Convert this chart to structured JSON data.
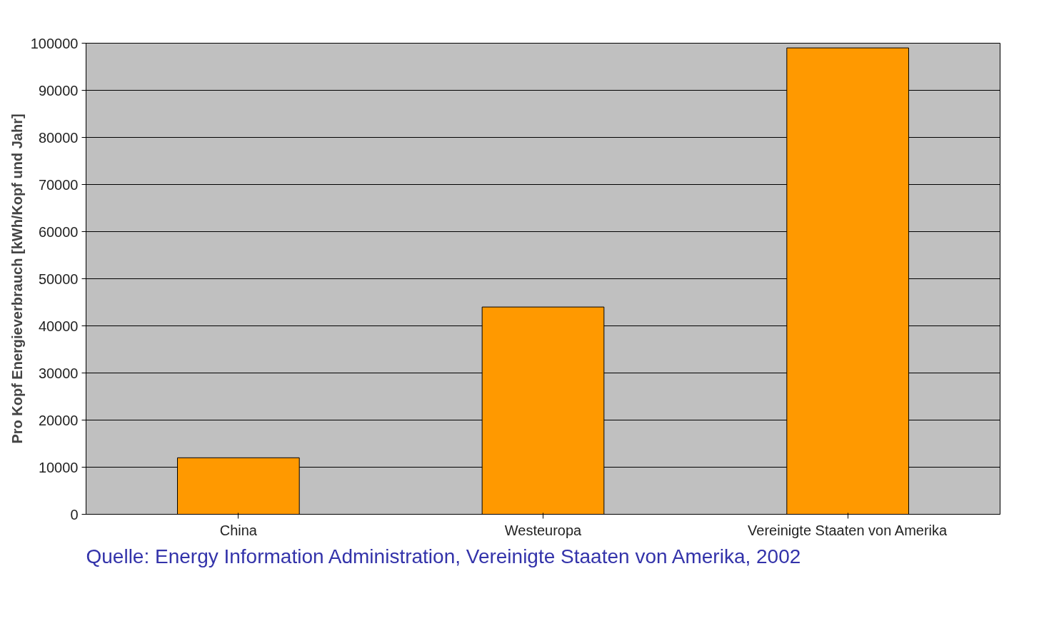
{
  "chart_data": {
    "type": "bar",
    "ylabel": "Pro Kopf Energieverbrauch [kWh/Kopf und Jahr]",
    "categories": [
      "China",
      "Westeuropa",
      "Vereinigte Staaten von Amerika"
    ],
    "values": [
      12000,
      44000,
      99000
    ],
    "color": "#ff9900",
    "ylim": [
      0,
      100000
    ],
    "yticks": [
      0,
      10000,
      20000,
      30000,
      40000,
      50000,
      60000,
      70000,
      80000,
      90000,
      100000
    ],
    "grid": "y",
    "annotations": [
      "Quelle: Energy Information Administration, Vereinigte Staaten von Amerika, 2002"
    ]
  }
}
